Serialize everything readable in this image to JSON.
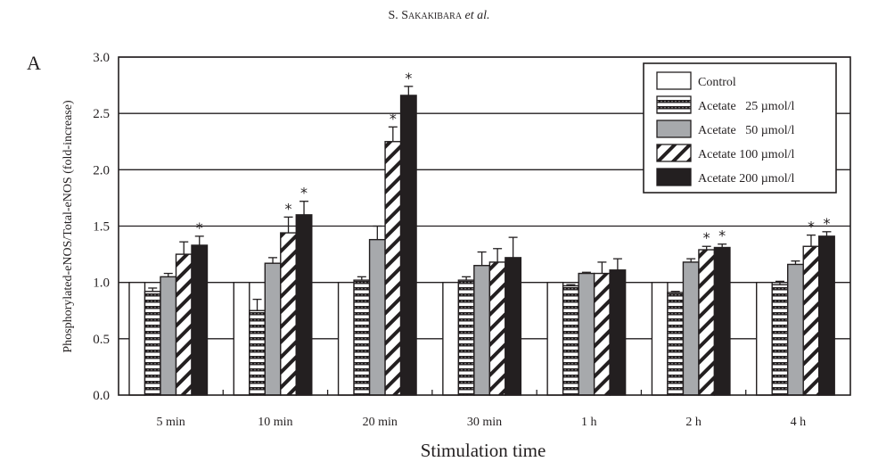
{
  "header": {
    "author_initial": "S.",
    "author_surname": "Sakakibara",
    "etal": "et al."
  },
  "panel_label": "A",
  "chart_data": {
    "type": "bar",
    "title": "",
    "xlabel": "Stimulation time",
    "ylabel": "Phosphorylated-eNOS/Total-eNOS (fold-increase)",
    "ylim": [
      0,
      3.0
    ],
    "yticks": [
      "0.0",
      "0.5",
      "1.0",
      "1.5",
      "2.0",
      "2.5",
      "3.0"
    ],
    "ytick_values": [
      0,
      0.5,
      1.0,
      1.5,
      2.0,
      2.5,
      3.0
    ],
    "grid": "horizontal",
    "legend_position": "top-right",
    "categories": [
      "5 min",
      "10 min",
      "20 min",
      "30 min",
      "1 h",
      "2 h",
      "4 h"
    ],
    "series": [
      {
        "name": "Control",
        "pattern": "white",
        "values": [
          1.0,
          1.0,
          1.0,
          1.0,
          1.0,
          1.0,
          1.0
        ],
        "errors": [
          0,
          0,
          0,
          0,
          0,
          0,
          0
        ],
        "significant": [
          false,
          false,
          false,
          false,
          false,
          false,
          false
        ]
      },
      {
        "name": "Acetate   25 µmol/l",
        "pattern": "horizontal-stripes",
        "values": [
          0.92,
          0.75,
          1.02,
          1.02,
          0.97,
          0.91,
          0.98
        ],
        "errors": [
          0.03,
          0.1,
          0.03,
          0.03,
          0.01,
          0.01,
          0.03
        ],
        "significant": [
          false,
          false,
          false,
          false,
          false,
          false,
          false
        ]
      },
      {
        "name": "Acetate   50 µmol/l",
        "pattern": "gray",
        "values": [
          1.05,
          1.17,
          1.38,
          1.15,
          1.08,
          1.18,
          1.16
        ],
        "errors": [
          0.03,
          0.05,
          0.12,
          0.12,
          0.01,
          0.03,
          0.03
        ],
        "significant": [
          false,
          false,
          false,
          false,
          false,
          false,
          false
        ]
      },
      {
        "name": "Acetate 100 µmol/l",
        "pattern": "diagonal-hatch",
        "values": [
          1.25,
          1.44,
          2.25,
          1.18,
          1.08,
          1.29,
          1.32
        ],
        "errors": [
          0.11,
          0.14,
          0.13,
          0.12,
          0.1,
          0.03,
          0.1
        ],
        "significant": [
          false,
          true,
          true,
          false,
          false,
          true,
          true
        ]
      },
      {
        "name": "Acetate 200 µmol/l",
        "pattern": "black",
        "values": [
          1.33,
          1.6,
          2.66,
          1.22,
          1.11,
          1.31,
          1.41
        ],
        "errors": [
          0.08,
          0.12,
          0.08,
          0.18,
          0.1,
          0.03,
          0.04
        ],
        "significant": [
          true,
          true,
          true,
          false,
          false,
          true,
          true
        ]
      }
    ],
    "significance_marker": "*",
    "colors": {
      "control": "#ffffff",
      "gray": "#a7a9ac",
      "black": "#231f20",
      "stroke": "#231f20"
    }
  }
}
